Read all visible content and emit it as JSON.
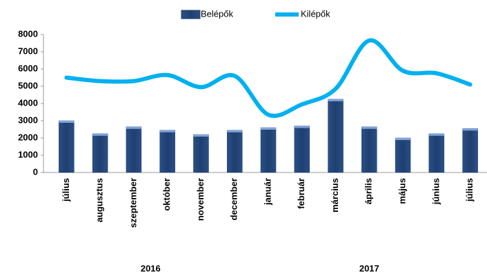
{
  "chart_data": {
    "type": "bar-line",
    "categories": [
      "július",
      "augusztus",
      "szeptember",
      "október",
      "november",
      "december",
      "január",
      "február",
      "március",
      "április",
      "május",
      "június",
      "július"
    ],
    "groups": [
      {
        "label": "2016",
        "span": 6
      },
      {
        "label": "2017",
        "span": 7
      }
    ],
    "series": [
      {
        "name": "Belépők",
        "type": "bar",
        "color": "#1f3f70",
        "values": [
          3000,
          2250,
          2650,
          2450,
          2200,
          2450,
          2600,
          2700,
          4250,
          2650,
          2000,
          2250,
          2550
        ]
      },
      {
        "name": "Kilépők",
        "type": "line",
        "color": "#00b0f0",
        "values": [
          5500,
          5300,
          5300,
          5650,
          4950,
          5600,
          3350,
          3950,
          4850,
          7650,
          5900,
          5750,
          5100
        ]
      }
    ],
    "ylim": [
      0,
      8000
    ],
    "yticks": [
      0,
      1000,
      2000,
      3000,
      4000,
      5000,
      6000,
      7000,
      8000
    ],
    "grid": false,
    "legend": "top"
  }
}
